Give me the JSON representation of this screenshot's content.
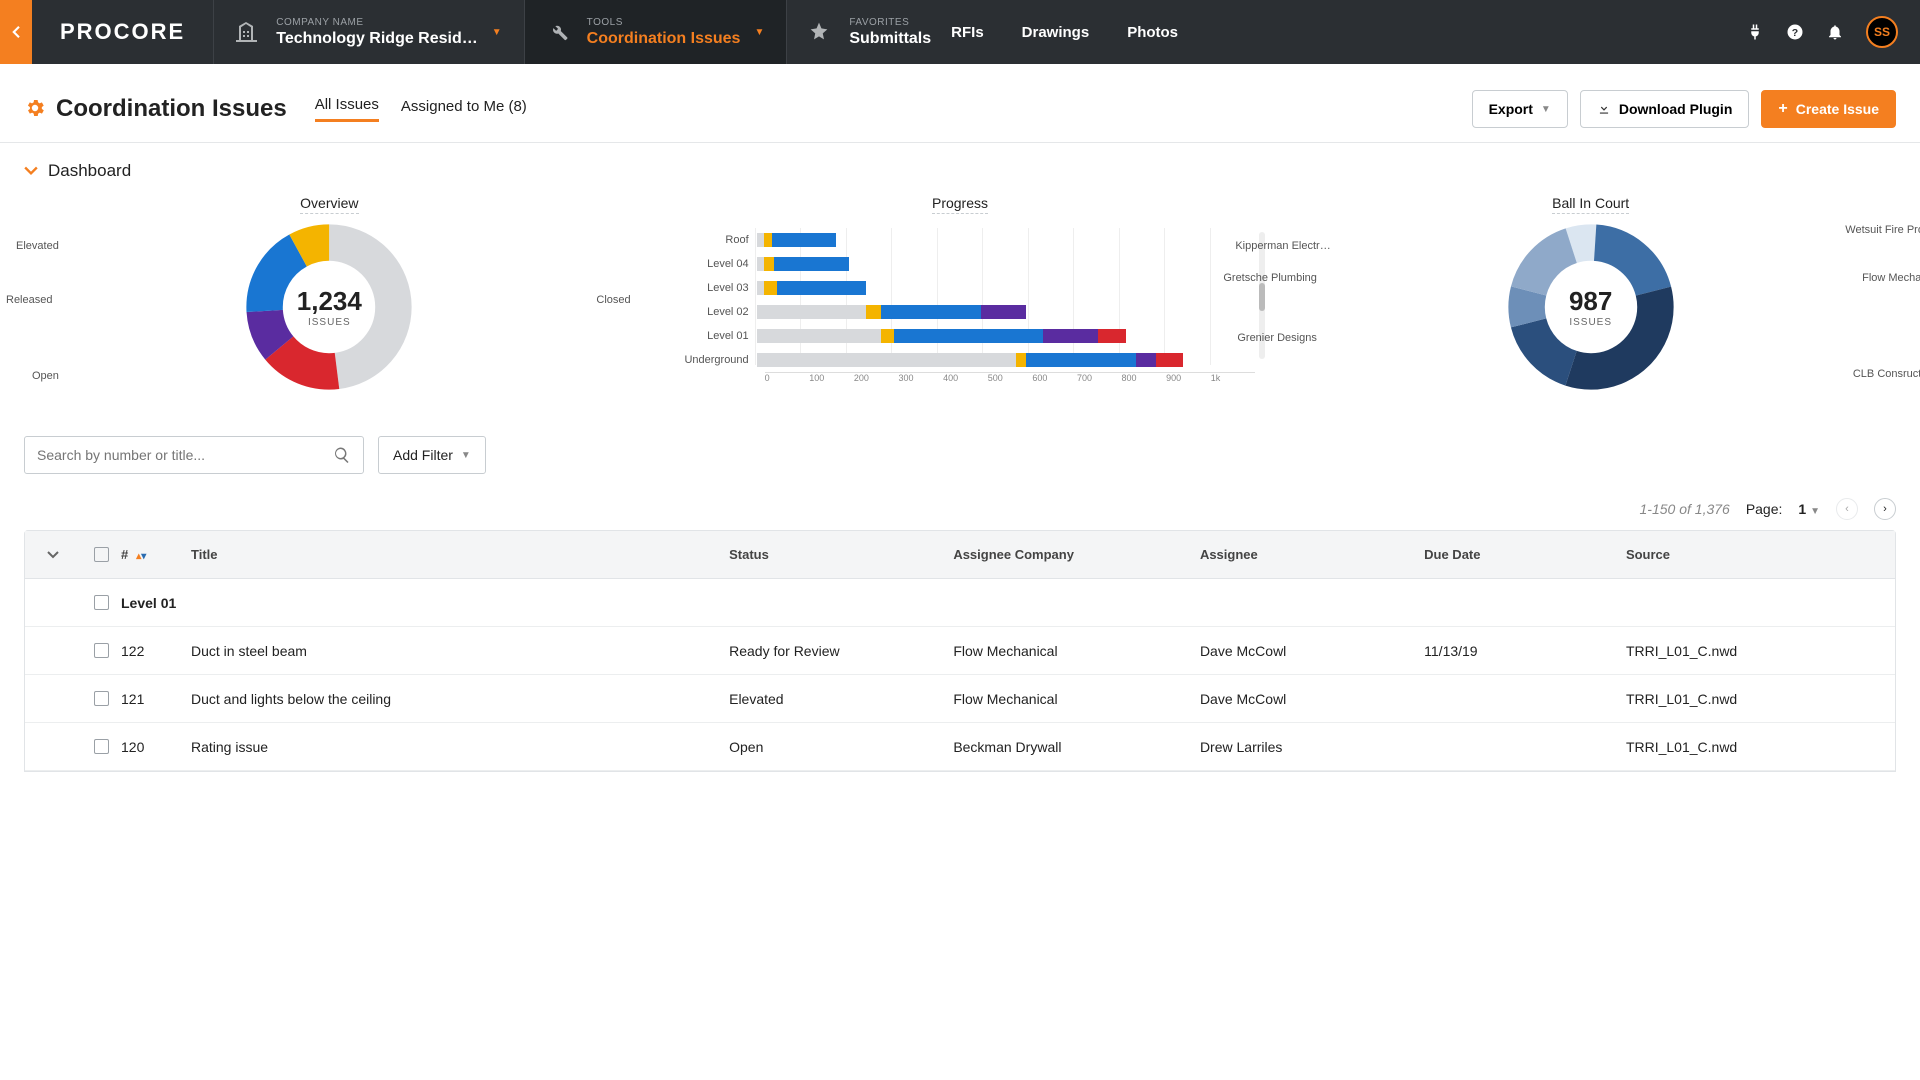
{
  "nav": {
    "logo": "PROCORE",
    "company_eyebrow": "COMPANY NAME",
    "company_value": "Technology Ridge Resid…",
    "tools_eyebrow": "TOOLS",
    "tools_value": "Coordination Issues",
    "fav_eyebrow": "FAVORITES",
    "fav_primary": "Submittals",
    "fav_links": [
      "RFIs",
      "Drawings",
      "Photos"
    ],
    "avatar": "SS"
  },
  "header": {
    "title": "Coordination Issues",
    "tab_all": "All Issues",
    "tab_mine": "Assigned to Me (8)",
    "export_label": "Export",
    "download_label": "Download Plugin",
    "create_label": "Create Issue"
  },
  "dashboard": {
    "section_label": "Dashboard",
    "overview": {
      "title": "Overview",
      "center_value": "1,234",
      "center_label": "ISSUES",
      "colors": {
        "closed": "#d7d9dc",
        "elevated": "#d9272e",
        "released": "#5a2ca0",
        "open": "#1976d2",
        "fifth": "#f4b400"
      },
      "slices": [
        {
          "key": "closed",
          "label": "Closed",
          "pct": 48
        },
        {
          "key": "elevated",
          "label": "Elevated",
          "pct": 16
        },
        {
          "key": "released",
          "label": "Released",
          "pct": 10
        },
        {
          "key": "open",
          "label": "Open",
          "pct": 18
        },
        {
          "key": "fifth",
          "label": "",
          "pct": 8
        }
      ]
    },
    "progress": {
      "title": "Progress",
      "x_max": 1000,
      "ticks": [
        "0",
        "100",
        "200",
        "300",
        "400",
        "500",
        "600",
        "700",
        "800",
        "900",
        "1k"
      ],
      "seg_colors": {
        "gray": "#d7d9dc",
        "yellow": "#f4b400",
        "blue": "#1976d2",
        "purple": "#5a2ca0",
        "red": "#d9272e"
      },
      "rows": [
        {
          "label": "Roof",
          "segs": [
            [
              "gray",
              15
            ],
            [
              "yellow",
              15
            ],
            [
              "blue",
              130
            ]
          ]
        },
        {
          "label": "Level 04",
          "segs": [
            [
              "gray",
              15
            ],
            [
              "yellow",
              20
            ],
            [
              "blue",
              150
            ]
          ]
        },
        {
          "label": "Level 03",
          "segs": [
            [
              "gray",
              15
            ],
            [
              "yellow",
              25
            ],
            [
              "blue",
              180
            ]
          ]
        },
        {
          "label": "Level 02",
          "segs": [
            [
              "gray",
              220
            ],
            [
              "yellow",
              30
            ],
            [
              "blue",
              200
            ],
            [
              "purple",
              90
            ]
          ]
        },
        {
          "label": "Level 01",
          "segs": [
            [
              "gray",
              250
            ],
            [
              "yellow",
              25
            ],
            [
              "blue",
              300
            ],
            [
              "purple",
              110
            ],
            [
              "red",
              55
            ]
          ]
        },
        {
          "label": "Underground",
          "segs": [
            [
              "gray",
              520
            ],
            [
              "yellow",
              20
            ],
            [
              "blue",
              220
            ],
            [
              "purple",
              40
            ],
            [
              "red",
              55
            ]
          ]
        }
      ]
    },
    "ball": {
      "title": "Ball In Court",
      "center_value": "987",
      "center_label": "ISSUES",
      "slices": [
        {
          "label": "Wetsuit Fire Prot…",
          "color": "#dbe6f1",
          "pct": 6
        },
        {
          "label": "Flow Mechanical",
          "color": "#3d6ea5",
          "pct": 20
        },
        {
          "label": "CLB Consruction",
          "color": "#1f3a5f",
          "pct": 34
        },
        {
          "label": "Grenier Designs",
          "color": "#2b4f7d",
          "pct": 16
        },
        {
          "label": "Gretsche Plumbing",
          "color": "#6d8fb8",
          "pct": 8
        },
        {
          "label": "Kipperman Electr…",
          "color": "#8fa9c9",
          "pct": 16
        }
      ]
    }
  },
  "controls": {
    "search_placeholder": "Search by number or title...",
    "add_filter": "Add Filter"
  },
  "pager": {
    "range": "1-150 of 1,376",
    "page_label": "Page:",
    "page_value": "1"
  },
  "table": {
    "cols": {
      "num": "#",
      "title": "Title",
      "status": "Status",
      "company": "Assignee Company",
      "assignee": "Assignee",
      "due": "Due Date",
      "source": "Source"
    },
    "group_label": "Level 01",
    "rows": [
      {
        "num": "122",
        "title": "Duct in steel beam",
        "status": "Ready for Review",
        "company": "Flow Mechanical",
        "assignee": "Dave McCowl",
        "due": "11/13/19",
        "source": "TRRI_L01_C.nwd"
      },
      {
        "num": "121",
        "title": "Duct and lights below the ceiling",
        "status": "Elevated",
        "company": "Flow Mechanical",
        "assignee": "Dave McCowl",
        "due": "",
        "source": "TRRI_L01_C.nwd"
      },
      {
        "num": "120",
        "title": "Rating issue",
        "status": "Open",
        "company": "Beckman Drywall",
        "assignee": "Drew Larriles",
        "due": "",
        "source": "TRRI_L01_C.nwd"
      }
    ]
  }
}
